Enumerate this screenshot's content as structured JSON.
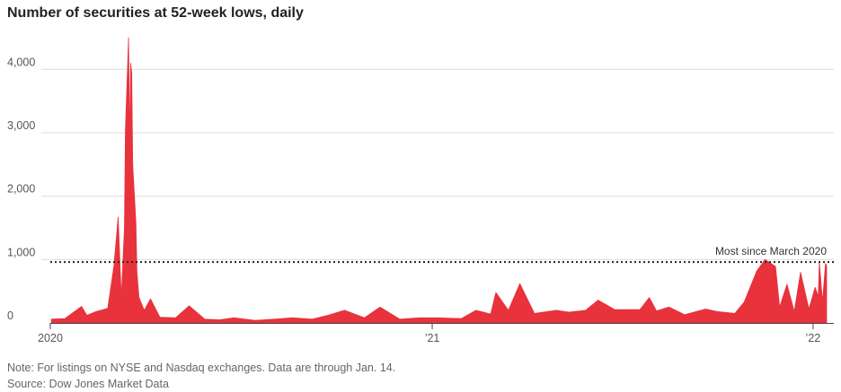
{
  "chart_data": {
    "type": "area",
    "title": "Number of securities at 52-week lows, daily",
    "xlabel": "",
    "ylabel": "",
    "x_range": [
      "2020-01-01",
      "2022-01-14"
    ],
    "ylim": [
      0,
      4600
    ],
    "y_ticks": [
      {
        "value": 0,
        "label": "0"
      },
      {
        "value": 1000,
        "label": "1,000"
      },
      {
        "value": 2000,
        "label": "2,000"
      },
      {
        "value": 3000,
        "label": "3,000"
      },
      {
        "value": 4000,
        "label": "4,000"
      }
    ],
    "x_ticks": [
      {
        "value": "2020-01-01",
        "label": "2020"
      },
      {
        "value": "2021-01-01",
        "label": "’21"
      },
      {
        "value": "2022-01-01",
        "label": "’22"
      }
    ],
    "grid": "horizontal",
    "series_color": "#e8323c",
    "x": [
      "2020-01-02",
      "2020-01-15",
      "2020-01-31",
      "2020-02-05",
      "2020-02-14",
      "2020-02-25",
      "2020-03-02",
      "2020-03-06",
      "2020-03-09",
      "2020-03-12",
      "2020-03-13",
      "2020-03-16",
      "2020-03-17",
      "2020-03-18",
      "2020-03-19",
      "2020-03-20",
      "2020-03-23",
      "2020-03-24",
      "2020-03-26",
      "2020-03-31",
      "2020-04-06",
      "2020-04-15",
      "2020-04-30",
      "2020-05-13",
      "2020-05-28",
      "2020-06-11",
      "2020-06-25",
      "2020-07-15",
      "2020-08-03",
      "2020-08-20",
      "2020-09-08",
      "2020-09-23",
      "2020-10-09",
      "2020-10-28",
      "2020-11-12",
      "2020-12-01",
      "2020-12-20",
      "2021-01-05",
      "2021-01-29",
      "2021-02-12",
      "2021-02-26",
      "2021-03-03",
      "2021-03-15",
      "2021-03-26",
      "2021-04-09",
      "2021-04-30",
      "2021-05-12",
      "2021-05-28",
      "2021-06-09",
      "2021-06-25",
      "2021-07-19",
      "2021-07-28",
      "2021-08-04",
      "2021-08-16",
      "2021-08-31",
      "2021-09-20",
      "2021-10-01",
      "2021-10-18",
      "2021-10-27",
      "2021-11-08",
      "2021-11-16",
      "2021-11-26",
      "2021-11-30",
      "2021-12-07",
      "2021-12-14",
      "2021-12-20",
      "2021-12-28",
      "2022-01-03",
      "2022-01-06",
      "2022-01-07",
      "2022-01-10",
      "2022-01-13",
      "2022-01-14"
    ],
    "values": [
      60,
      70,
      260,
      120,
      180,
      230,
      900,
      1670,
      400,
      1500,
      3050,
      4500,
      2800,
      4100,
      3940,
      2500,
      1600,
      800,
      400,
      200,
      380,
      90,
      80,
      270,
      60,
      50,
      80,
      40,
      60,
      80,
      60,
      120,
      200,
      80,
      250,
      60,
      80,
      80,
      70,
      200,
      140,
      480,
      200,
      620,
      150,
      200,
      170,
      200,
      360,
      210,
      210,
      400,
      190,
      250,
      130,
      220,
      180,
      150,
      330,
      820,
      1000,
      890,
      250,
      610,
      180,
      800,
      220,
      560,
      420,
      960,
      330,
      940,
      900
    ],
    "reference_line": {
      "value": 960,
      "label": "Most since March 2020",
      "style": "dotted"
    }
  },
  "note": "Note: For listings on NYSE and Nasdaq exchanges. Data are through Jan. 14.",
  "source": "Source: Dow Jones Market Data"
}
